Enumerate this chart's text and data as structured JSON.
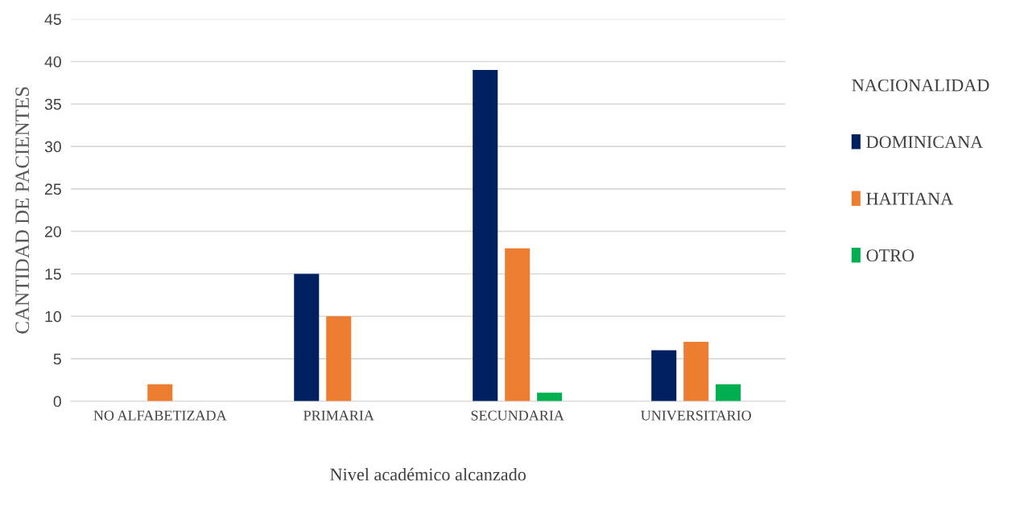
{
  "chart_data": {
    "type": "bar",
    "xlabel": "Nivel académico alcanzado",
    "ylabel": "CANTIDAD DE PACIENTES",
    "legend_title": "NACIONALIDAD",
    "categories": [
      "NO ALFABETIZADA",
      "PRIMARIA",
      "SECUNDARIA",
      "UNIVERSITARIO"
    ],
    "series": [
      {
        "name": "DOMINICANA",
        "color": "#002060",
        "values": [
          0,
          15,
          39,
          6
        ]
      },
      {
        "name": "HAITIANA",
        "color": "#ed7d31",
        "values": [
          2,
          10,
          18,
          7
        ]
      },
      {
        "name": "OTRO",
        "color": "#00b050",
        "values": [
          0,
          0,
          1,
          2
        ]
      }
    ],
    "ylim": [
      0,
      45
    ],
    "yticks": [
      0,
      5,
      10,
      15,
      20,
      25,
      30,
      35,
      40,
      45
    ],
    "grid": "y",
    "legend": "right"
  }
}
